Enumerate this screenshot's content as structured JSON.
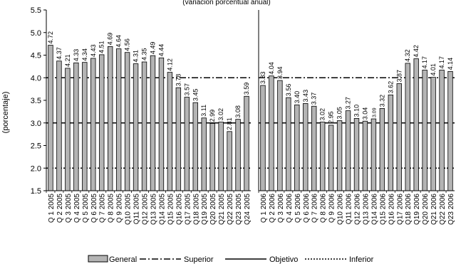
{
  "chart_data": {
    "type": "bar",
    "subtitle": "(variación porcentual anual)",
    "ylabel": "(porcentaje)",
    "ylim": [
      1.5,
      5.5
    ],
    "yticks": [
      1.5,
      2.0,
      2.5,
      3.0,
      3.5,
      4.0,
      4.5,
      5.0,
      5.5
    ],
    "ytick_labels": [
      "1.5",
      "2.0",
      "2.5",
      "3.0",
      "3.5",
      "4.0",
      "4.5",
      "5.0",
      "5.5"
    ],
    "groups": [
      {
        "categories": [
          "Q 1 2005",
          "Q 2 2005",
          "Q 3 2005",
          "Q 4 2005",
          "Q 5 2005",
          "Q 6 2005",
          "Q 7 2005",
          "Q 8 2005",
          "Q 9 2005",
          "Q10 2005",
          "Q11 2005",
          "Q12 2005",
          "Q13 2005",
          "Q14 2005",
          "Q15 2005",
          "Q16 2005",
          "Q17 2005",
          "Q18 2005",
          "Q19 2005",
          "Q20 2005",
          "Q21 2005",
          "Q22 2005",
          "Q23 2005",
          "Q24 2005"
        ],
        "values": [
          4.72,
          4.37,
          4.21,
          4.33,
          4.34,
          4.43,
          4.51,
          4.69,
          4.64,
          4.56,
          4.31,
          4.35,
          4.49,
          4.44,
          4.12,
          3.78,
          3.57,
          3.45,
          3.11,
          2.99,
          3.02,
          2.81,
          3.08,
          3.59
        ],
        "labels": [
          "4.72",
          "4.37",
          "4.21",
          "4.33",
          "4.34",
          "4.43",
          "4.51",
          "4.69",
          "4.64",
          "4.56",
          "4.31",
          "4.35",
          "4.49",
          "4.44",
          "4.12",
          "3.78",
          "3.57",
          "3.45",
          "3.11",
          "2.99",
          "3.02",
          "2.81",
          "3.08",
          "3.59"
        ]
      },
      {
        "categories": [
          "Q 1 2006",
          "Q 2 2006",
          "Q 3 2006",
          "Q 4 2006",
          "Q 5 2006",
          "Q 6 2006",
          "Q 7 2006",
          "Q 8 2006",
          "Q 9 2006",
          "Q10 2006",
          "Q11 2006",
          "Q12 2006",
          "Q13 2006",
          "Q14 2006",
          "Q15 2006",
          "Q16 2006",
          "Q17 2006",
          "Q18 2006",
          "Q19 2006",
          "Q20 2006",
          "Q21 2006",
          "Q22 2006",
          "Q23 2006"
        ],
        "values": [
          3.83,
          4.04,
          3.94,
          3.56,
          3.4,
          3.43,
          3.37,
          3.02,
          2.95,
          3.05,
          3.27,
          3.1,
          3.04,
          3.09,
          3.32,
          3.62,
          3.87,
          4.32,
          4.42,
          4.17,
          4.01,
          4.17,
          4.14
        ],
        "labels": [
          "3.83",
          "4.04",
          "3.94",
          "3.56",
          "3.40",
          "3.43",
          "3.37",
          "3.02",
          "2.95",
          "3.05",
          "3.27",
          "3.10",
          "3.04",
          "3.09",
          "3.32",
          "3.62",
          "3.87",
          "4.32",
          "4.42",
          "4.17",
          "4.01",
          "4.17",
          "4.14"
        ]
      }
    ],
    "reference_lines": [
      {
        "name": "Superior",
        "value": 4.0,
        "style": "dash-dot"
      },
      {
        "name": "Objetivo",
        "value": 3.0,
        "style": "solid"
      },
      {
        "name": "Inferior",
        "value": 2.0,
        "style": "dotted"
      }
    ],
    "legend": {
      "placement": "bottom",
      "entries": [
        "General",
        "Superior",
        "Objetivo",
        "Inferior"
      ]
    },
    "colors": {
      "bar_fill": "#b4b4b4",
      "bar_stroke": "#000000",
      "line": "#000000"
    },
    "grid": false
  }
}
